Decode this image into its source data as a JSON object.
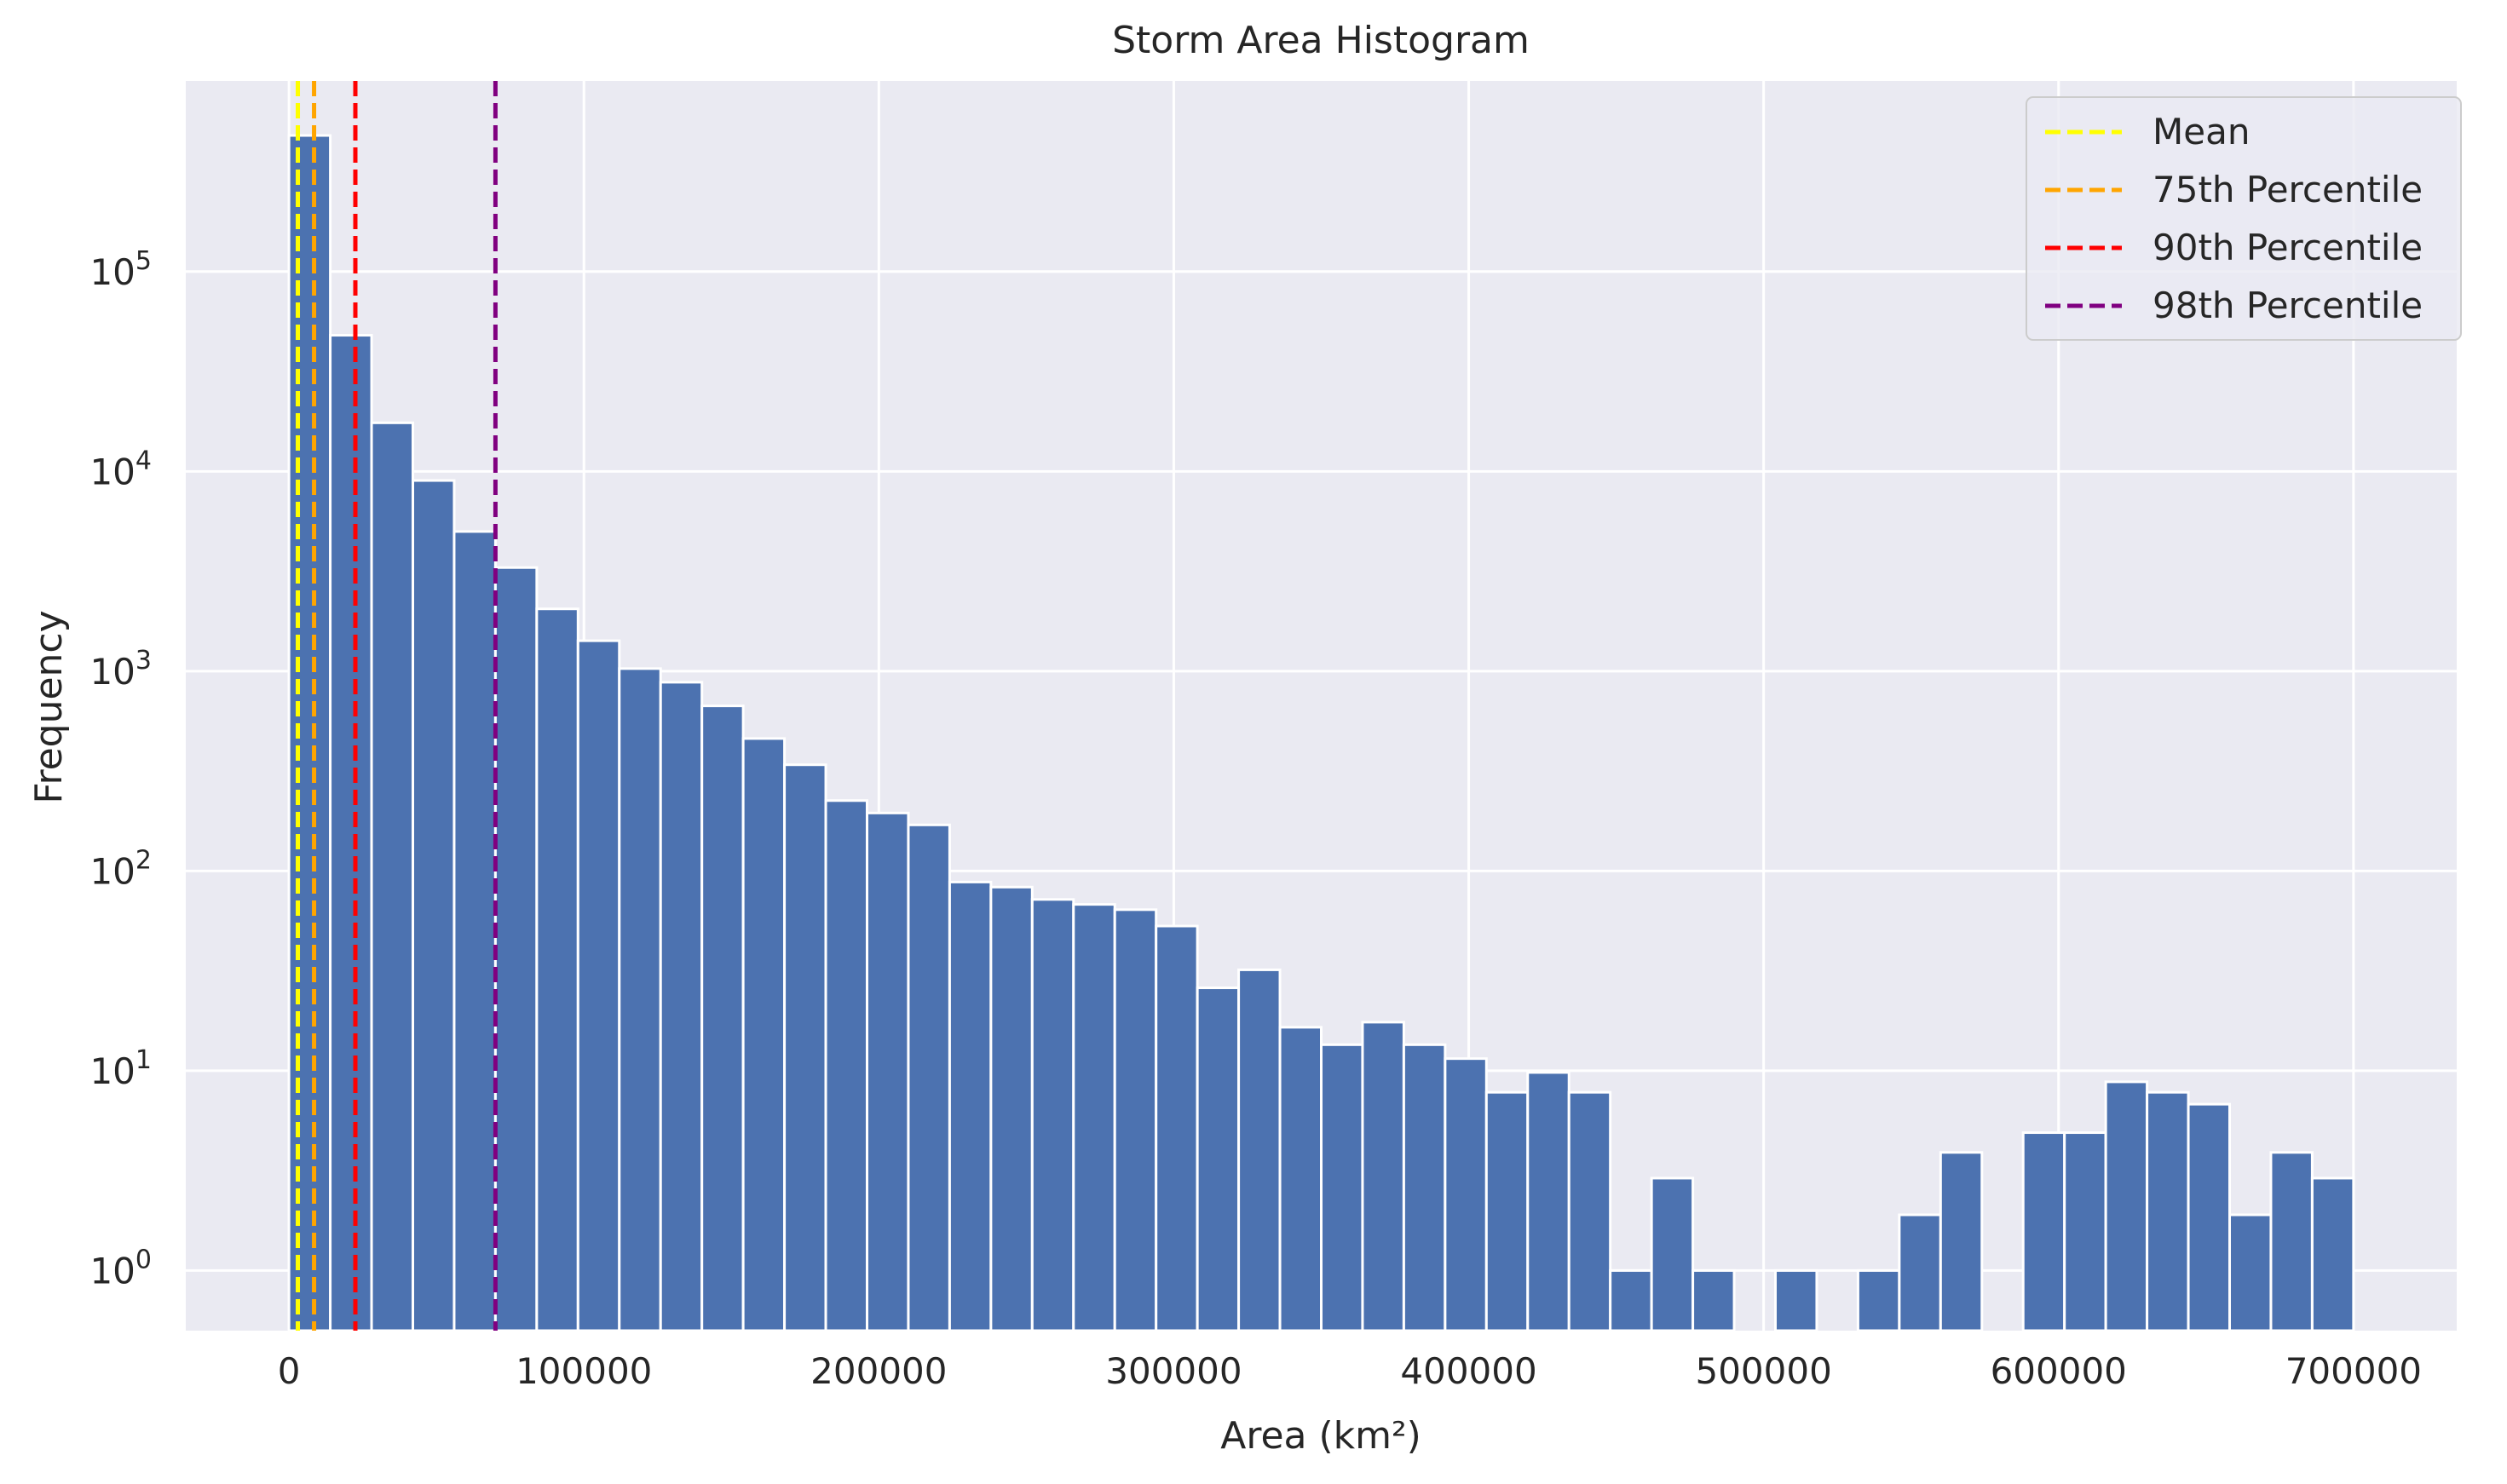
{
  "chart_data": {
    "type": "bar",
    "title": "Storm Area Histogram",
    "xlabel": "Area (km²)",
    "ylabel": "Frequency",
    "yscale": "log",
    "xlim": [
      -35000,
      735000
    ],
    "ylim": [
      0.5,
      900000
    ],
    "grid": true,
    "legend_position": "top-right",
    "bar_color": "#4c72b0",
    "background_color": "#eaeaf2",
    "bin_width": 14000,
    "bin_start": 0,
    "values": [
      480000,
      48000,
      17500,
      9000,
      5000,
      3300,
      2050,
      1420,
      1030,
      880,
      670,
      460,
      340,
      225,
      195,
      170,
      88,
      83,
      72,
      68,
      64,
      53,
      26,
      32,
      16.5,
      13.5,
      17.5,
      13.5,
      11.5,
      7.8,
      9.8,
      7.8,
      1,
      2.9,
      1,
      0,
      1,
      0,
      1,
      1.9,
      3.9,
      0,
      4.9,
      4.9,
      8.8,
      7.8,
      6.8,
      1.9,
      3.9,
      2.9
    ],
    "x_ticks": [
      {
        "value": 0,
        "label": "0"
      },
      {
        "value": 100000,
        "label": "100000"
      },
      {
        "value": 200000,
        "label": "200000"
      },
      {
        "value": 300000,
        "label": "300000"
      },
      {
        "value": 400000,
        "label": "400000"
      },
      {
        "value": 500000,
        "label": "500000"
      },
      {
        "value": 600000,
        "label": "600000"
      },
      {
        "value": 700000,
        "label": "700000"
      }
    ],
    "y_ticks": [
      {
        "value": 1,
        "base": "10",
        "exp": "0"
      },
      {
        "value": 10,
        "base": "10",
        "exp": "1"
      },
      {
        "value": 100,
        "base": "10",
        "exp": "2"
      },
      {
        "value": 1000,
        "base": "10",
        "exp": "3"
      },
      {
        "value": 10000,
        "base": "10",
        "exp": "4"
      },
      {
        "value": 100000,
        "base": "10",
        "exp": "5"
      }
    ],
    "reference_lines": [
      {
        "name": "Mean",
        "x": 3000,
        "color": "#ffff00"
      },
      {
        "name": "75th Percentile",
        "x": 8500,
        "color": "#ffa500"
      },
      {
        "name": "90th Percentile",
        "x": 22500,
        "color": "#ff0000"
      },
      {
        "name": "98th Percentile",
        "x": 70000,
        "color": "#800080"
      }
    ]
  }
}
